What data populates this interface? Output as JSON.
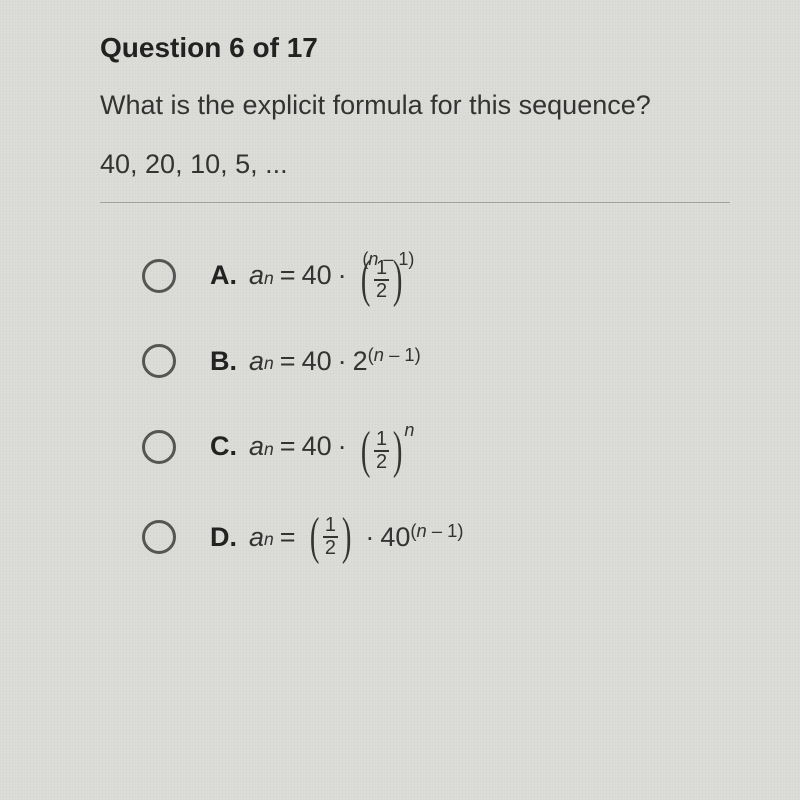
{
  "header": {
    "label": "Question",
    "current": 6,
    "of_word": "of",
    "total": 17
  },
  "prompt": "What is the explicit formula for this sequence?",
  "sequence": "40, 20, 10, 5, ...",
  "colors": {
    "background": "#dcdcd8",
    "text": "#2a2a2a",
    "radio_border": "#555555",
    "divider": "rgba(0,0,0,0.25)"
  },
  "options": [
    {
      "letter": "A.",
      "var": "a",
      "sub": "n",
      "eq": "=",
      "coef": "40",
      "op": "·",
      "base_type": "fraction",
      "frac_num": "1",
      "frac_den": "2",
      "exp": "(n – 1)"
    },
    {
      "letter": "B.",
      "var": "a",
      "sub": "n",
      "eq": "=",
      "coef": "40",
      "op": "·",
      "base_type": "number",
      "base": "2",
      "exp": "(n – 1)"
    },
    {
      "letter": "C.",
      "var": "a",
      "sub": "n",
      "eq": "=",
      "coef": "40",
      "op": "·",
      "base_type": "fraction",
      "frac_num": "1",
      "frac_den": "2",
      "exp": "n"
    },
    {
      "letter": "D.",
      "var": "a",
      "sub": "n",
      "eq": "=",
      "lead_type": "fraction",
      "frac_num": "1",
      "frac_den": "2",
      "op": "·",
      "coef": "40",
      "exp": "(n – 1)"
    }
  ]
}
